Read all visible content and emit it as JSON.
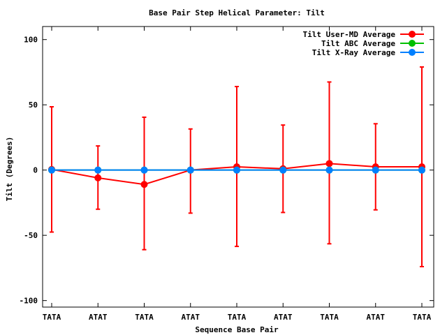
{
  "chart_data": {
    "type": "line",
    "title": "Base Pair Step Helical Parameter: Tilt",
    "xlabel": "Sequence Base Pair",
    "ylabel": "Tilt (Degrees)",
    "categories": [
      "TATA",
      "ATAT",
      "TATA",
      "ATAT",
      "TATA",
      "ATAT",
      "TATA",
      "ATAT",
      "TATA"
    ],
    "ylim": [
      -105,
      110
    ],
    "yticks": [
      -100,
      -50,
      0,
      50,
      100
    ],
    "grid": false,
    "legend_position": "top-right",
    "series": [
      {
        "name": "Tilt User-MD Average",
        "color": "#ff0000",
        "values": [
          0.5,
          -6,
          -11,
          0,
          2.5,
          1,
          5,
          2.5,
          2.5
        ],
        "error_low": [
          -47.5,
          -30,
          -61,
          -33,
          -58.5,
          -32.5,
          -56.5,
          -30.5,
          -74
        ],
        "error_high": [
          48.5,
          18.5,
          40.5,
          31.5,
          64,
          34.5,
          67.5,
          35.5,
          79
        ]
      },
      {
        "name": "Tilt ABC Average",
        "color": "#00c000",
        "values": [
          0,
          0,
          0,
          0,
          0,
          0,
          0,
          0,
          0
        ]
      },
      {
        "name": "Tilt X-Ray Average",
        "color": "#0080ff",
        "values": [
          0,
          0,
          0,
          0,
          0,
          0,
          0,
          0,
          0
        ]
      }
    ]
  }
}
